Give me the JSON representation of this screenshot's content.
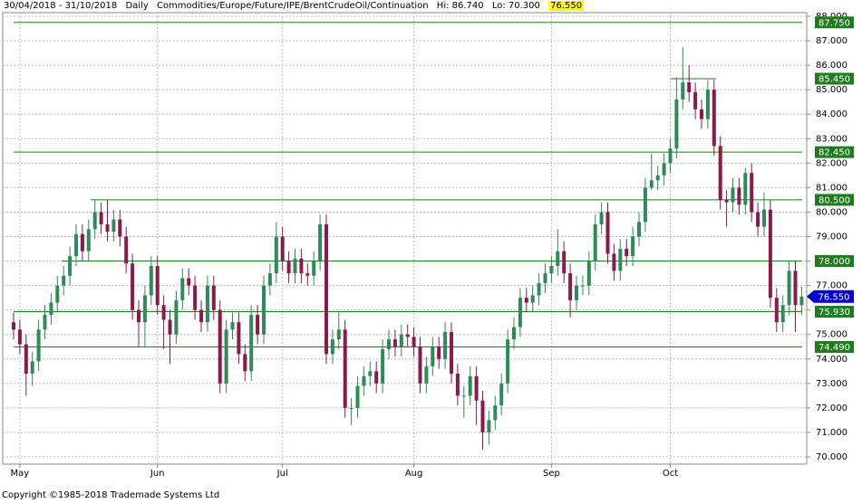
{
  "chart_data": {
    "type": "candlestick",
    "header": {
      "range": "30/04/2018 - 31/10/2018",
      "period": "Daily",
      "symbol": "Commodities/Europe/Future/IPE/BrentCrudeOil/Continuation",
      "hi": "Hi: 86.740",
      "lo": "Lo: 70.300",
      "last": "76.550"
    },
    "footer": "Copyright ©1985-2018 Trademade Systems Ltd",
    "up_color": "#2e8b57",
    "down_color": "#8b1a4a",
    "level_color": "#1e7b1e",
    "last_color": "#0000cc",
    "categories": [
      null,
      "May",
      null,
      null,
      null,
      null,
      null,
      null,
      null,
      null,
      null,
      null,
      null,
      null,
      null,
      null,
      null,
      null,
      null,
      null,
      null,
      null,
      null,
      "Jun",
      null,
      null,
      null,
      null,
      null,
      null,
      null,
      null,
      null,
      null,
      null,
      null,
      null,
      null,
      null,
      null,
      null,
      null,
      null,
      "Jul",
      null,
      null,
      null,
      null,
      null,
      null,
      null,
      null,
      null,
      null,
      null,
      null,
      null,
      null,
      null,
      null,
      null,
      null,
      null,
      null,
      "Aug",
      null,
      null,
      null,
      null,
      null,
      null,
      null,
      null,
      null,
      null,
      null,
      null,
      null,
      null,
      null,
      null,
      null,
      null,
      null,
      null,
      null,
      "Sep",
      null,
      null,
      null,
      null,
      null,
      null,
      null,
      null,
      null,
      null,
      null,
      null,
      null,
      null,
      null,
      null,
      null,
      null,
      "Oct",
      null,
      null,
      null,
      null,
      null,
      null,
      null,
      null,
      null,
      null,
      null,
      null,
      null,
      null,
      null,
      null,
      null,
      null,
      null,
      null,
      null
    ],
    "open": [
      75.5,
      75.2,
      74.6,
      73.4,
      73.9,
      75.2,
      75.8,
      76.3,
      77.0,
      77.4,
      78.2,
      79.1,
      78.4,
      79.3,
      80.0,
      79.5,
      79.2,
      79.7,
      79.0,
      77.9,
      76.0,
      75.5,
      76.6,
      77.8,
      76.2,
      75.6,
      75.0,
      76.4,
      77.3,
      77.0,
      76.0,
      75.5,
      77.0,
      76.0,
      73.0,
      75.2,
      75.5,
      74.2,
      73.5,
      75.8,
      75.0,
      77.0,
      77.5,
      79.0,
      78.0,
      77.5,
      78.1,
      77.5,
      77.4,
      78.0,
      79.5,
      74.2,
      74.8,
      75.2,
      72.0,
      72.0,
      72.9,
      73.3,
      73.5,
      73.0,
      74.4,
      74.8,
      74.5,
      75.0,
      74.9,
      74.5,
      73.0,
      73.7,
      74.5,
      74.0,
      75.1,
      73.4,
      72.5,
      72.5,
      73.3,
      72.3,
      71.0,
      71.5,
      72.1,
      73.0,
      74.8,
      75.3,
      76.5,
      76.3,
      76.6,
      77.1,
      77.5,
      77.8,
      78.4,
      77.5,
      76.4,
      77.0,
      77.0,
      78.0,
      79.5,
      80.0,
      78.3,
      77.6,
      78.5,
      78.2,
      79.0,
      79.6,
      81.0,
      81.3,
      81.5,
      82.0,
      82.6,
      84.6,
      85.3,
      84.9,
      84.2,
      83.8,
      85.0,
      82.7,
      80.5,
      80.4,
      81.0,
      80.3,
      81.6,
      80.0,
      79.4,
      80.1,
      76.5,
      75.5,
      76.2,
      77.6,
      76.2
    ],
    "high": [
      75.9,
      75.6,
      75.0,
      74.3,
      75.6,
      76.2,
      76.7,
      77.4,
      77.8,
      78.6,
      79.5,
      79.5,
      79.7,
      80.5,
      80.4,
      80.5,
      80.1,
      80.1,
      79.4,
      78.3,
      76.4,
      77.0,
      78.2,
      78.2,
      76.6,
      76.0,
      76.8,
      77.7,
      77.7,
      77.4,
      76.4,
      77.4,
      77.4,
      76.4,
      75.6,
      75.9,
      75.9,
      74.6,
      76.2,
      76.2,
      77.4,
      77.9,
      79.6,
      79.4,
      78.4,
      78.5,
      78.5,
      77.9,
      78.4,
      79.9,
      79.9,
      75.2,
      75.9,
      75.6,
      72.4,
      73.3,
      73.7,
      73.9,
      73.9,
      74.8,
      75.2,
      75.2,
      75.4,
      75.4,
      75.3,
      74.9,
      74.1,
      74.9,
      74.9,
      75.5,
      75.5,
      73.8,
      72.9,
      73.7,
      73.7,
      72.7,
      71.9,
      72.5,
      73.4,
      75.2,
      75.7,
      76.9,
      76.9,
      77.0,
      77.5,
      77.9,
      78.2,
      79.3,
      78.8,
      77.9,
      77.4,
      77.4,
      78.4,
      79.9,
      80.4,
      80.4,
      78.7,
      78.9,
      78.9,
      79.4,
      80.0,
      81.4,
      82.4,
      81.9,
      82.4,
      83.0,
      85.5,
      86.74,
      86.0,
      85.3,
      84.6,
      85.4,
      85.4,
      83.1,
      80.9,
      81.4,
      81.4,
      81.8,
      82.0,
      80.4,
      80.8,
      80.5,
      76.9,
      76.6,
      78.0,
      78.0,
      76.95
    ],
    "low": [
      74.8,
      74.2,
      72.5,
      72.9,
      73.5,
      74.8,
      75.4,
      75.9,
      76.6,
      77.0,
      77.8,
      78.0,
      78.0,
      78.9,
      79.1,
      78.8,
      78.8,
      78.6,
      77.5,
      75.6,
      74.5,
      74.5,
      76.2,
      75.8,
      74.4,
      73.8,
      74.6,
      76.0,
      76.6,
      75.6,
      75.1,
      75.1,
      75.6,
      72.6,
      72.6,
      74.8,
      73.8,
      73.1,
      73.1,
      74.6,
      74.6,
      76.6,
      77.1,
      77.6,
      77.1,
      77.1,
      77.1,
      77.0,
      77.0,
      77.6,
      73.8,
      73.8,
      74.4,
      71.6,
      71.3,
      71.6,
      72.5,
      72.9,
      72.6,
      72.6,
      74.0,
      74.1,
      74.1,
      74.5,
      74.1,
      72.6,
      72.6,
      73.3,
      73.6,
      73.6,
      73.0,
      72.1,
      71.6,
      72.1,
      71.3,
      70.3,
      70.5,
      71.1,
      71.7,
      72.6,
      74.4,
      74.9,
      75.9,
      75.9,
      76.2,
      76.7,
      77.1,
      77.4,
      77.1,
      75.7,
      76.0,
      76.6,
      76.6,
      77.6,
      79.1,
      77.9,
      77.2,
      77.2,
      77.8,
      77.8,
      78.6,
      79.2,
      80.9,
      80.9,
      81.1,
      81.6,
      82.2,
      84.2,
      84.5,
      83.8,
      83.4,
      83.4,
      82.3,
      80.1,
      79.4,
      80.0,
      79.9,
      79.9,
      79.6,
      79.0,
      79.0,
      76.1,
      75.1,
      75.1,
      75.8,
      75.1,
      75.8
    ],
    "close": [
      75.2,
      74.6,
      73.4,
      73.9,
      75.2,
      75.8,
      76.3,
      77.0,
      77.4,
      78.2,
      79.1,
      78.4,
      79.3,
      80.0,
      79.5,
      79.2,
      79.7,
      79.0,
      77.9,
      76.0,
      75.5,
      76.6,
      77.8,
      76.2,
      75.6,
      75.0,
      76.4,
      77.3,
      77.0,
      76.0,
      75.5,
      77.0,
      76.0,
      73.0,
      75.2,
      75.5,
      74.2,
      73.5,
      75.8,
      75.0,
      77.0,
      77.5,
      79.0,
      78.0,
      77.5,
      78.1,
      77.5,
      77.4,
      78.0,
      79.5,
      74.2,
      74.8,
      75.2,
      72.0,
      72.0,
      72.9,
      73.3,
      73.5,
      73.0,
      74.4,
      74.8,
      74.5,
      75.0,
      74.9,
      74.5,
      73.0,
      73.7,
      74.5,
      74.0,
      75.1,
      73.4,
      72.5,
      72.5,
      73.3,
      72.3,
      71.0,
      71.5,
      72.1,
      73.0,
      74.8,
      75.3,
      76.5,
      76.3,
      76.6,
      77.1,
      77.5,
      77.8,
      78.4,
      77.5,
      76.4,
      77.0,
      77.0,
      78.0,
      79.5,
      80.0,
      78.3,
      77.6,
      78.5,
      78.2,
      79.0,
      79.6,
      81.0,
      81.3,
      81.5,
      82.0,
      82.6,
      84.6,
      85.3,
      84.9,
      84.2,
      83.8,
      85.0,
      82.7,
      80.5,
      80.4,
      81.0,
      80.3,
      81.6,
      80.0,
      79.4,
      80.1,
      76.5,
      75.5,
      76.2,
      77.6,
      76.2,
      76.55
    ],
    "levels": [
      {
        "value": 87.75,
        "label": "87.750"
      },
      {
        "value": 85.45,
        "label": "85.450"
      },
      {
        "value": 82.45,
        "label": "82.450"
      },
      {
        "value": 80.5,
        "label": "80.500"
      },
      {
        "value": 78.0,
        "label": "78.000"
      },
      {
        "value": 75.93,
        "label": "75.930"
      },
      {
        "value": 74.49,
        "label": "74.490"
      }
    ],
    "last_price": {
      "value": 76.55,
      "label": "76.550"
    },
    "ylim": [
      70,
      88
    ],
    "yticks": [
      {
        "value": 70,
        "label": "70.000"
      },
      {
        "value": 71,
        "label": "71.000"
      },
      {
        "value": 72,
        "label": "72.000"
      },
      {
        "value": 73,
        "label": "73.000"
      },
      {
        "value": 74,
        "label": "74.000"
      },
      {
        "value": 75,
        "label": "75.000"
      },
      {
        "value": 76,
        "label": "76.000"
      },
      {
        "value": 77,
        "label": "77.000"
      },
      {
        "value": 78,
        "label": "78.000"
      },
      {
        "value": 79,
        "label": "79.000"
      },
      {
        "value": 80,
        "label": "80.000"
      },
      {
        "value": 81,
        "label": "81.000"
      },
      {
        "value": 82,
        "label": "82.000"
      },
      {
        "value": 83,
        "label": "83.000"
      },
      {
        "value": 84,
        "label": "84.000"
      },
      {
        "value": 85,
        "label": "85.000"
      },
      {
        "value": 86,
        "label": "86.000"
      },
      {
        "value": 87,
        "label": "87.000"
      },
      {
        "value": 88,
        "label": "88.000"
      }
    ],
    "grid": true
  }
}
